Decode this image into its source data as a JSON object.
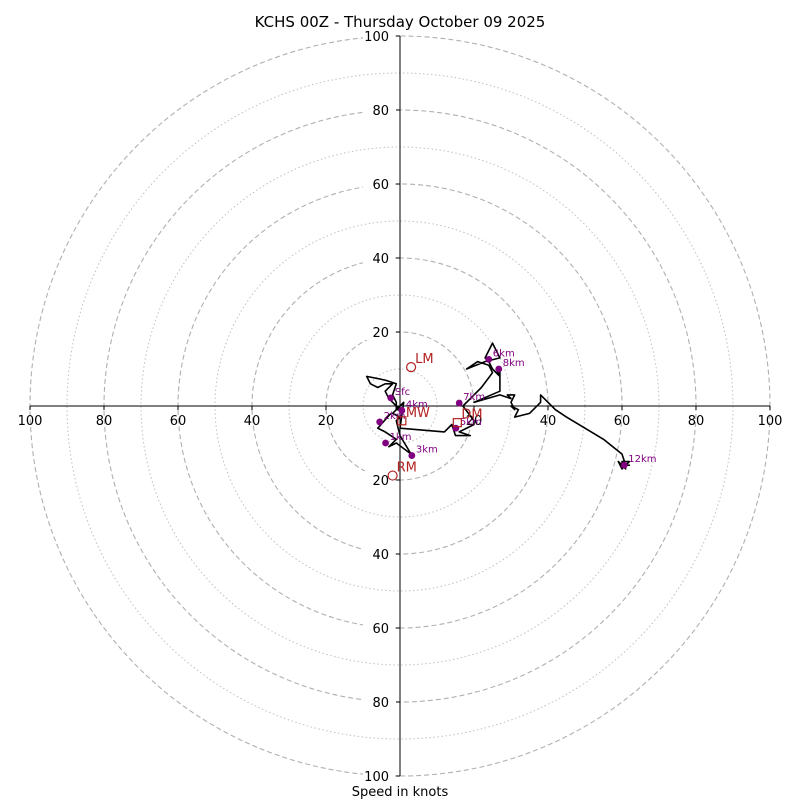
{
  "chart_data": {
    "type": "hodograph",
    "title": "KCHS 00Z - Thursday October 09 2025",
    "xlabel": "Speed in knots",
    "xlim": [
      -100,
      100
    ],
    "ylim": [
      -100,
      100
    ],
    "major_rings": [
      20,
      40,
      60,
      80,
      100
    ],
    "minor_rings": [
      10,
      30,
      50,
      70,
      90
    ],
    "x_ticks": [
      {
        "value": -100,
        "label": "100"
      },
      {
        "value": -80,
        "label": "80"
      },
      {
        "value": -60,
        "label": "60"
      },
      {
        "value": -40,
        "label": "40"
      },
      {
        "value": -20,
        "label": "20"
      },
      {
        "value": 20,
        "label": "20"
      },
      {
        "value": 40,
        "label": "40"
      },
      {
        "value": 60,
        "label": "60"
      },
      {
        "value": 80,
        "label": "80"
      },
      {
        "value": 100,
        "label": "100"
      }
    ],
    "y_ticks": [
      {
        "value": 100,
        "label": "100"
      },
      {
        "value": 80,
        "label": "80"
      },
      {
        "value": 60,
        "label": "60"
      },
      {
        "value": 40,
        "label": "40"
      },
      {
        "value": 20,
        "label": "20"
      },
      {
        "value": -20,
        "label": "20"
      },
      {
        "value": -40,
        "label": "40"
      },
      {
        "value": -60,
        "label": "60"
      },
      {
        "value": -80,
        "label": "80"
      },
      {
        "value": -100,
        "label": "100"
      }
    ],
    "trace": [
      [
        -2.5,
        -2
      ],
      [
        -6,
        -6
      ],
      [
        -4,
        -7
      ],
      [
        -1,
        -9
      ],
      [
        -3,
        -11
      ],
      [
        -1,
        -10
      ],
      [
        3,
        -13
      ],
      [
        0,
        -8
      ],
      [
        -1,
        -4
      ],
      [
        0,
        -3
      ],
      [
        -2,
        -2
      ],
      [
        -1,
        -1
      ],
      [
        0,
        -1
      ],
      [
        -1,
        0
      ],
      [
        -3,
        2
      ],
      [
        -4,
        4
      ],
      [
        -2,
        6
      ],
      [
        -4,
        6
      ],
      [
        -6,
        5
      ],
      [
        -8,
        6
      ],
      [
        -9,
        8
      ],
      [
        -4,
        7
      ],
      [
        -1,
        6
      ],
      [
        -2,
        3
      ],
      [
        -1,
        1
      ],
      [
        -1,
        -1
      ],
      [
        0,
        0
      ],
      [
        1,
        1
      ],
      [
        0,
        -6
      ],
      [
        12,
        -7
      ],
      [
        14,
        -5
      ],
      [
        15,
        -8
      ],
      [
        19,
        -8
      ],
      [
        16,
        -7
      ],
      [
        20,
        -5
      ],
      [
        20,
        -4
      ],
      [
        17,
        0
      ],
      [
        20,
        3
      ],
      [
        22,
        5
      ],
      [
        25,
        9
      ],
      [
        24,
        11
      ],
      [
        21,
        12
      ],
      [
        18,
        10
      ],
      [
        23,
        12
      ],
      [
        27,
        13
      ],
      [
        25,
        17
      ],
      [
        24,
        15
      ],
      [
        23,
        13
      ],
      [
        24,
        12
      ],
      [
        25,
        10
      ],
      [
        27,
        8
      ],
      [
        26,
        10
      ],
      [
        27,
        10
      ],
      [
        27,
        4
      ],
      [
        20,
        1
      ],
      [
        27,
        3
      ],
      [
        30,
        2
      ],
      [
        29,
        3
      ],
      [
        31,
        3
      ],
      [
        30,
        1
      ],
      [
        31,
        -1
      ],
      [
        30,
        0
      ],
      [
        32,
        -1
      ],
      [
        31,
        -3
      ],
      [
        35,
        -2
      ],
      [
        38,
        1
      ],
      [
        38,
        3
      ],
      [
        42,
        -1
      ],
      [
        45,
        -3
      ],
      [
        50,
        -6
      ],
      [
        55,
        -9
      ],
      [
        60,
        -13
      ],
      [
        61,
        -16
      ],
      [
        62,
        -15
      ],
      [
        60,
        -15
      ],
      [
        61,
        -16
      ],
      [
        60,
        -17
      ],
      [
        59,
        -15
      ],
      [
        60,
        -16
      ],
      [
        61,
        -16
      ],
      [
        60,
        -16
      ],
      [
        61,
        -17
      ],
      [
        60,
        -16
      ],
      [
        60,
        -15
      ],
      [
        60,
        -16
      ],
      [
        61,
        -16
      ],
      [
        62,
        -16
      ],
      [
        61,
        -16
      ]
    ],
    "height_markers": [
      {
        "label": "Sfc",
        "u": -2.5,
        "v": 2.2
      },
      {
        "label": "1km",
        "u": -3.9,
        "v": -10
      },
      {
        "label": "2km",
        "u": -5.5,
        "v": -4.3
      },
      {
        "label": "3km",
        "u": 3.2,
        "v": -13.4
      },
      {
        "label": "4km",
        "u": 0.5,
        "v": -1.2
      },
      {
        "label": "5km",
        "u": 15.1,
        "v": -6
      },
      {
        "label": "7km",
        "u": 16,
        "v": 0.8
      },
      {
        "label": "6km",
        "u": 24,
        "v": 12.6
      },
      {
        "label": "8km",
        "u": 26.7,
        "v": 10
      },
      {
        "label": "12km",
        "u": 60.6,
        "v": -16
      }
    ],
    "motion_markers": [
      {
        "label": "LM",
        "u": 3,
        "v": 10.5,
        "shape": "circle"
      },
      {
        "label": "RM",
        "u": -2,
        "v": -18.8,
        "shape": "circle"
      },
      {
        "label": "MW",
        "u": 0.5,
        "v": -4,
        "shape": "square"
      },
      {
        "label": "DM",
        "u": 15.5,
        "v": -4.5,
        "shape": "square"
      }
    ],
    "colors": {
      "trace": "#000000",
      "height_marker": "#800080",
      "motion_marker": "#b22222",
      "grid": "#b0b0b0",
      "axis": "#000000"
    }
  }
}
